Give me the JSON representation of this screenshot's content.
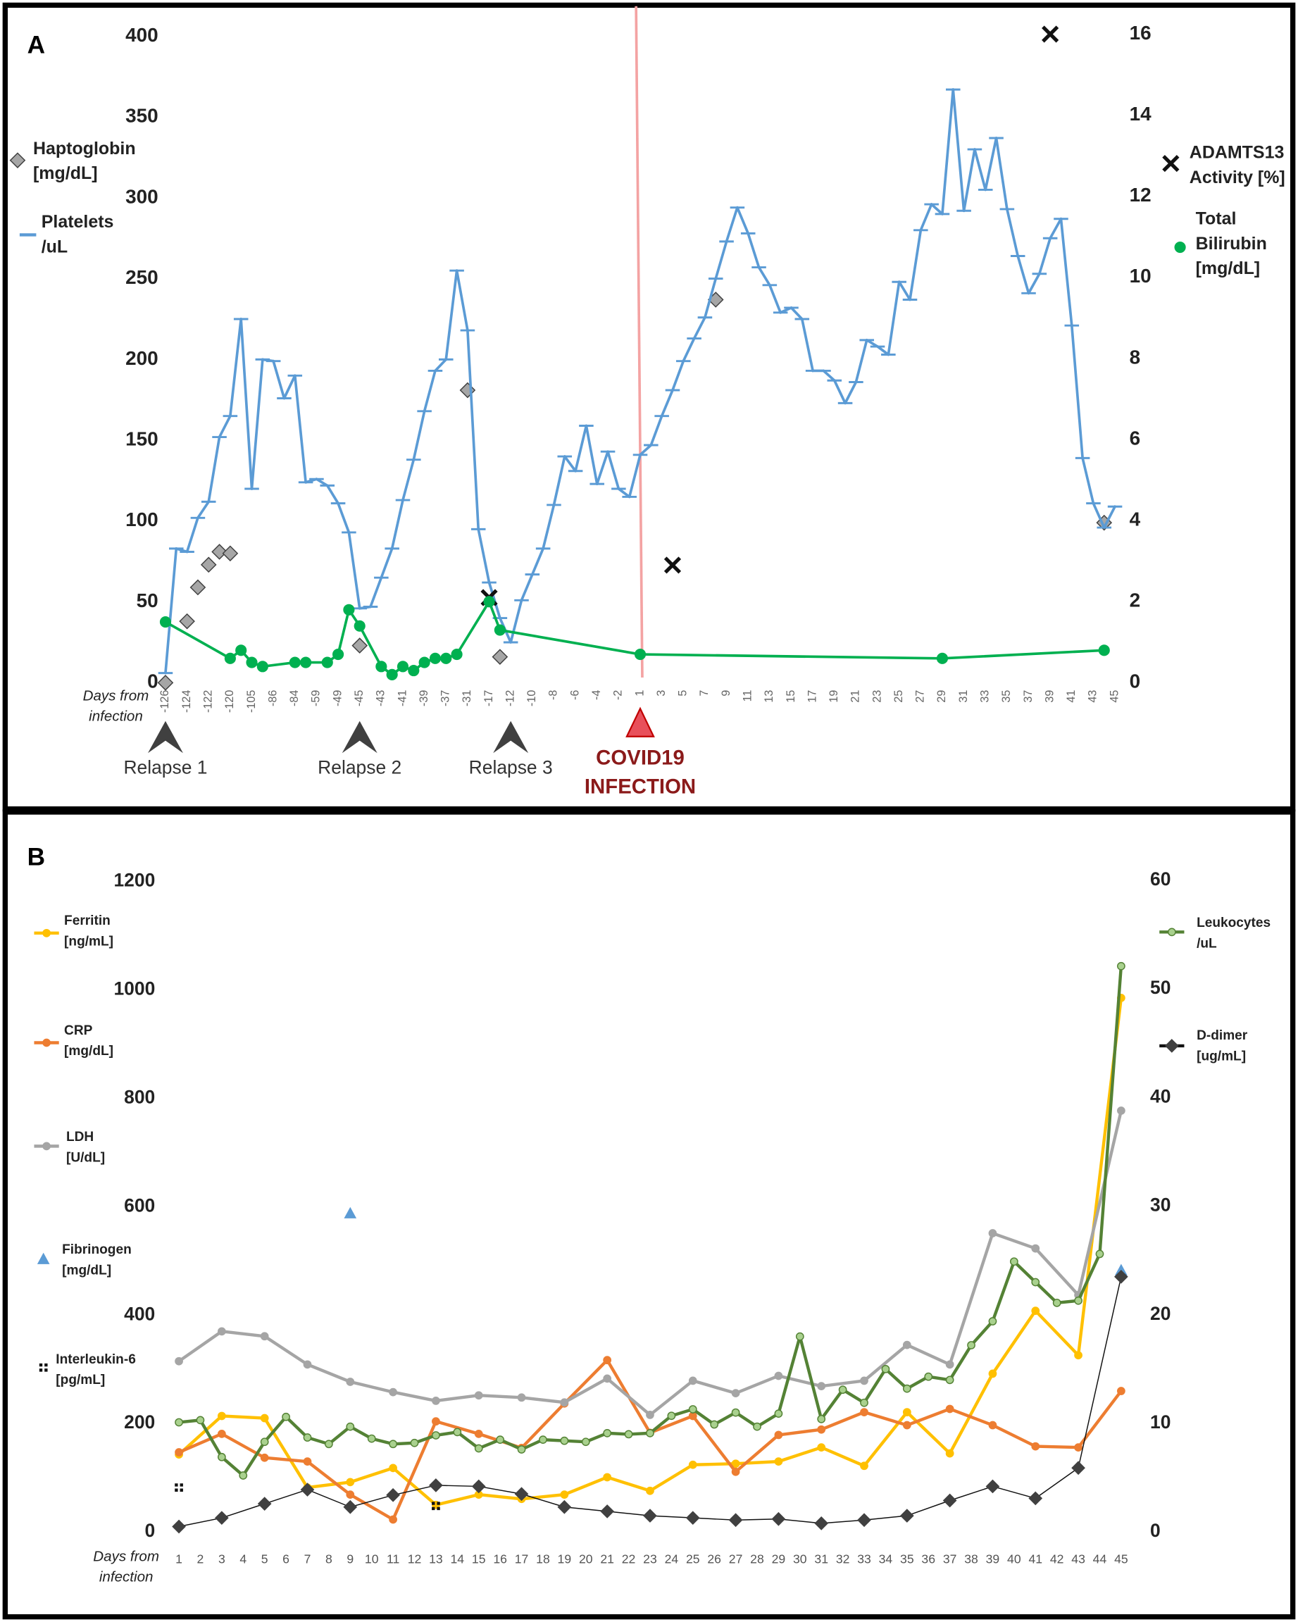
{
  "chart_data": [
    {
      "type": "line",
      "title": "A",
      "xlabel": "Days from\ninfection",
      "categories": [
        "-126",
        null,
        "-124",
        null,
        "-122",
        null,
        "-120",
        null,
        "-105",
        null,
        "-86",
        null,
        "-84",
        null,
        "-59",
        null,
        "-49",
        null,
        "-45",
        null,
        "-43",
        null,
        "-41",
        null,
        "-39",
        null,
        "-37",
        null,
        "-31",
        null,
        "-17",
        null,
        "-12",
        null,
        "-10",
        null,
        "-8",
        null,
        "-6",
        null,
        "-4",
        null,
        "-2",
        null,
        "1",
        null,
        "3",
        null,
        "5",
        null,
        "7",
        null,
        "9",
        null,
        "11",
        null,
        "13",
        null,
        "15",
        null,
        "17",
        null,
        "19",
        null,
        "21",
        null,
        "23",
        null,
        "25",
        null,
        "27",
        null,
        "29",
        null,
        "31",
        null,
        "33",
        null,
        "35",
        null,
        "37",
        null,
        "39",
        null,
        "41",
        null,
        "43",
        null,
        "45"
      ],
      "ylim": [
        0,
        400
      ],
      "yticks": [
        0,
        50,
        100,
        150,
        200,
        250,
        300,
        350,
        400
      ],
      "y2lim": [
        0,
        16
      ],
      "y2ticks": [
        0,
        2,
        4,
        6,
        8,
        10,
        12,
        14,
        16
      ],
      "grid": false,
      "series": [
        {
          "name": "Haptoglobin\n[mg/dL]",
          "color": "#a6a6a6",
          "marker": "diamond",
          "line": false,
          "values": [
            0,
            null,
            38,
            59,
            73,
            81,
            80,
            null,
            null,
            null,
            null,
            null,
            null,
            null,
            null,
            null,
            null,
            null,
            23,
            null,
            null,
            null,
            null,
            null,
            null,
            null,
            null,
            null,
            181,
            null,
            null,
            16,
            null,
            null,
            null,
            null,
            null,
            null,
            null,
            null,
            null,
            null,
            null,
            null,
            null,
            null,
            null,
            null,
            null,
            null,
            null,
            237,
            null,
            null,
            null,
            null,
            null,
            null,
            null,
            null,
            null,
            null,
            null,
            null,
            null,
            null,
            null,
            null,
            null,
            null,
            null,
            null,
            null,
            null,
            null,
            null,
            null,
            null,
            null,
            null,
            null,
            null,
            null,
            null,
            null,
            null,
            null,
            99,
            null
          ]
        },
        {
          "name": "Platelets\n/uL",
          "color": "#5b9bd5",
          "marker": "dash",
          "line": true,
          "values": [
            6,
            83,
            81,
            102,
            112,
            152,
            165,
            225,
            120,
            200,
            199,
            176,
            190,
            124,
            126,
            122,
            111,
            93,
            46,
            47,
            65,
            83,
            113,
            138,
            168,
            193,
            200,
            255,
            218,
            95,
            62,
            40,
            25,
            51,
            67,
            83,
            110,
            140,
            131,
            159,
            123,
            143,
            120,
            115,
            141,
            147,
            165,
            181,
            199,
            213,
            226,
            250,
            273,
            294,
            278,
            257,
            246,
            229,
            232,
            225,
            193,
            193,
            187,
            173,
            186,
            212,
            208,
            203,
            248,
            237,
            280,
            296,
            290,
            367,
            292,
            330,
            305,
            337,
            293,
            264,
            241,
            253,
            275,
            287,
            221,
            139,
            111,
            96,
            109
          ]
        },
        {
          "name": "ADAMTS13\nActivity [%]",
          "color": "#111111",
          "marker": "x",
          "line": false,
          "axis": "y2",
          "values": [
            null,
            null,
            null,
            null,
            null,
            null,
            null,
            null,
            null,
            null,
            null,
            null,
            null,
            null,
            null,
            null,
            null,
            null,
            null,
            null,
            null,
            null,
            null,
            null,
            null,
            null,
            null,
            null,
            null,
            null,
            2.1,
            null,
            null,
            null,
            null,
            null,
            null,
            null,
            null,
            null,
            null,
            null,
            null,
            null,
            null,
            null,
            null,
            2.9,
            null,
            null,
            null,
            null,
            null,
            null,
            null,
            null,
            null,
            null,
            null,
            null,
            null,
            null,
            null,
            null,
            null,
            null,
            null,
            null,
            null,
            null,
            null,
            null,
            null,
            null,
            null,
            null,
            null,
            null,
            null,
            null,
            null,
            null,
            16,
            null,
            null,
            null,
            null,
            null,
            null
          ]
        },
        {
          "name": "Total\nBilirubin\n[mg/dL]",
          "color": "#00b050",
          "marker": "circle",
          "line": true,
          "axis": "y2",
          "values": [
            1.5,
            null,
            null,
            null,
            null,
            null,
            0.6,
            0.8,
            0.5,
            0.4,
            null,
            null,
            0.5,
            0.5,
            null,
            0.5,
            0.7,
            1.8,
            1.4,
            null,
            0.4,
            0.2,
            0.4,
            0.3,
            0.5,
            0.6,
            0.6,
            0.7,
            null,
            null,
            2,
            1.3,
            null,
            null,
            null,
            null,
            null,
            null,
            null,
            null,
            null,
            null,
            null,
            null,
            0.7,
            null,
            null,
            null,
            null,
            null,
            null,
            null,
            null,
            null,
            null,
            null,
            null,
            null,
            null,
            null,
            null,
            null,
            null,
            null,
            null,
            null,
            null,
            null,
            null,
            null,
            null,
            null,
            0.6,
            null,
            null,
            null,
            null,
            null,
            null,
            null,
            null,
            null,
            null,
            null,
            null,
            null,
            null,
            0.8,
            null
          ]
        }
      ],
      "annotations": [
        {
          "text": "Relapse 1",
          "at": "-126",
          "marker": "arrowhead",
          "color": "#404040"
        },
        {
          "text": "Relapse 2",
          "at": "-45",
          "marker": "arrowhead",
          "color": "#404040"
        },
        {
          "text": "Relapse 3",
          "at": "-12",
          "marker": "arrowhead",
          "color": "#404040"
        },
        {
          "text": "COVID19\nINFECTION",
          "at": "1",
          "marker": "triangle",
          "color": "#8b1a1a",
          "line": true
        }
      ]
    },
    {
      "type": "line",
      "title": "B",
      "xlabel": "Days from\ninfection",
      "categories": [
        "1",
        "2",
        "3",
        "4",
        "5",
        "6",
        "7",
        "8",
        "9",
        "10",
        "11",
        "12",
        "13",
        "14",
        "15",
        "16",
        "17",
        "18",
        "19",
        "20",
        "21",
        "22",
        "23",
        "24",
        "25",
        "26",
        "27",
        "28",
        "29",
        "30",
        "31",
        "32",
        "33",
        "34",
        "35",
        "36",
        "37",
        "38",
        "39",
        "40",
        "41",
        "42",
        "43",
        "44",
        "45"
      ],
      "ylim": [
        0,
        1200
      ],
      "yticks": [
        0,
        200,
        400,
        600,
        800,
        1000,
        1200
      ],
      "y2lim": [
        0,
        60
      ],
      "y2ticks": [
        0,
        10,
        20,
        30,
        40,
        50,
        60
      ],
      "grid": false,
      "series": [
        {
          "name": "Ferritin\n[ng/mL]",
          "color": "#ffc000",
          "marker": "circle",
          "line": true,
          "values": [
            143,
            null,
            214,
            null,
            210,
            null,
            82,
            null,
            92,
            null,
            118,
            null,
            50,
            null,
            69,
            null,
            61,
            null,
            69,
            null,
            101,
            null,
            76,
            null,
            124,
            null,
            126,
            null,
            130,
            null,
            156,
            null,
            122,
            null,
            221,
            null,
            145,
            null,
            292,
            null,
            408,
            null,
            326,
            null,
            985
          ]
        },
        {
          "name": "CRP\n[mg/dL]",
          "color": "#ed7d31",
          "marker": "circle",
          "line": true,
          "values": [
            147,
            null,
            181,
            null,
            137,
            null,
            130,
            null,
            69,
            null,
            23,
            null,
            204,
            null,
            181,
            null,
            155,
            null,
            237,
            null,
            317,
            null,
            183,
            null,
            214,
            null,
            111,
            null,
            179,
            null,
            189,
            null,
            221,
            null,
            197,
            null,
            227,
            null,
            197,
            null,
            158,
            null,
            156,
            null,
            260
          ]
        },
        {
          "name": "LDH\n[U/dL]",
          "color": "#a5a5a5",
          "marker": "circle",
          "line": true,
          "values": [
            315,
            null,
            370,
            null,
            361,
            null,
            309,
            null,
            277,
            null,
            258,
            null,
            242,
            null,
            252,
            null,
            248,
            null,
            239,
            null,
            283,
            null,
            216,
            null,
            279,
            null,
            256,
            null,
            288,
            null,
            269,
            null,
            279,
            null,
            345,
            null,
            309,
            null,
            551,
            null,
            523,
            null,
            437,
            null,
            777
          ]
        },
        {
          "name": "Fibrinogen\n[mg/dL]",
          "color": "#5b9bd5",
          "marker": "triangle",
          "line": false,
          "values": [
            null,
            null,
            null,
            null,
            null,
            null,
            null,
            null,
            588,
            null,
            null,
            null,
            null,
            null,
            null,
            null,
            null,
            null,
            null,
            null,
            null,
            null,
            null,
            null,
            null,
            null,
            null,
            null,
            null,
            null,
            null,
            null,
            null,
            null,
            null,
            null,
            null,
            null,
            null,
            null,
            null,
            null,
            null,
            null,
            483
          ]
        },
        {
          "name": "Interleukin-6\n[pg/mL]",
          "color": "#111111",
          "marker": "square",
          "line": false,
          "values": [
            82,
            null,
            null,
            null,
            null,
            null,
            null,
            null,
            null,
            null,
            null,
            null,
            48,
            null,
            null,
            null,
            null,
            null,
            null,
            null,
            null,
            null,
            null,
            null,
            null,
            null,
            null,
            null,
            null,
            null,
            null,
            null,
            null,
            null,
            null,
            null,
            null,
            null,
            null,
            null,
            null,
            null,
            null,
            null,
            null
          ]
        },
        {
          "name": "Leukocytes\n/uL",
          "color": "#548235",
          "marker_color": "#a9d18e",
          "marker": "circle",
          "line": true,
          "axis": "y2",
          "values": [
            10.1,
            10.3,
            6.9,
            5.2,
            8.3,
            10.6,
            8.7,
            8.1,
            9.7,
            8.6,
            8.1,
            8.2,
            8.9,
            9.2,
            7.7,
            8.5,
            7.6,
            8.5,
            8.4,
            8.3,
            9.1,
            9.0,
            9.1,
            10.7,
            11.3,
            9.9,
            11.0,
            9.7,
            10.9,
            18.0,
            10.4,
            13.1,
            11.9,
            15.0,
            13.2,
            14.3,
            14.0,
            17.2,
            19.4,
            24.9,
            23.0,
            21.1,
            21.3,
            25.6,
            52.1
          ]
        },
        {
          "name": "D-dimer\n[ug/mL]",
          "color": "#111111",
          "marker_color": "#404040",
          "marker": "diamond",
          "line": true,
          "axis": "y2",
          "values": [
            0.5,
            null,
            1.3,
            null,
            2.6,
            null,
            3.9,
            null,
            2.3,
            null,
            3.4,
            null,
            4.3,
            null,
            4.2,
            null,
            3.5,
            null,
            2.3,
            null,
            1.9,
            null,
            1.5,
            null,
            1.3,
            null,
            1.1,
            null,
            1.2,
            null,
            0.8,
            null,
            1.1,
            null,
            1.5,
            null,
            2.9,
            null,
            4.2,
            null,
            3.1,
            null,
            5.9,
            null,
            23.5
          ]
        }
      ]
    }
  ]
}
